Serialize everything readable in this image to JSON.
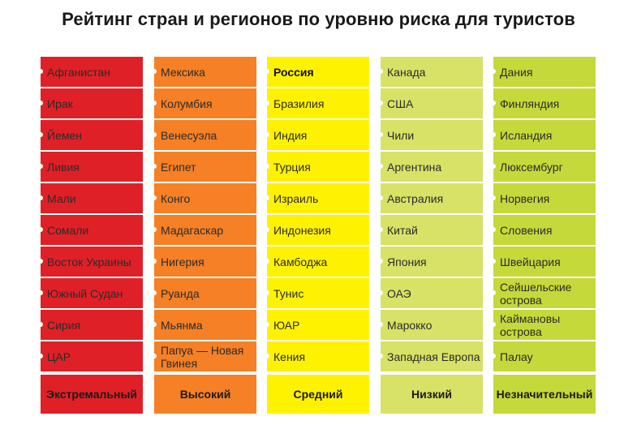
{
  "title": "Рейтинг стран и регионов по уровню риска для туристов",
  "columns": [
    {
      "level": "Экстремальный",
      "color": "#e02027",
      "countries": [
        "Афганистан",
        "Ирак",
        "Йемен",
        "Ливия",
        "Мали",
        "Сомали",
        "Восток Украины",
        "Южный Судан",
        "Сирия",
        "ЦАР"
      ]
    },
    {
      "level": "Высокий",
      "color": "#f58025",
      "countries": [
        "Мексика",
        "Колумбия",
        "Венесуэла",
        "Египет",
        "Конго",
        "Мадагаскар",
        "Нигерия",
        "Руанда",
        "Мьянма",
        "Папуа — Новая Гвинея"
      ]
    },
    {
      "level": "Средний",
      "color": "#fff200",
      "countries": [
        "Россия",
        "Бразилия",
        "Индия",
        "Турция",
        "Израиль",
        "Индонезия",
        "Камбоджа",
        "Тунис",
        "ЮАР",
        "Кения"
      ],
      "highlighted": "Россия"
    },
    {
      "level": "Низкий",
      "color": "#d7e266",
      "countries": [
        "Канада",
        "США",
        "Чили",
        "Аргентина",
        "Австралия",
        "Китай",
        "Япония",
        "ОАЭ",
        "Марокко",
        "Западная Европа"
      ]
    },
    {
      "level": "Незначительный",
      "color": "#c5d93a",
      "countries": [
        "Дания",
        "Финляндия",
        "Исландия",
        "Люксембург",
        "Норвегия",
        "Словения",
        "Швейцария",
        "Сейшельские острова",
        "Каймановы острова",
        "Палау"
      ]
    }
  ]
}
